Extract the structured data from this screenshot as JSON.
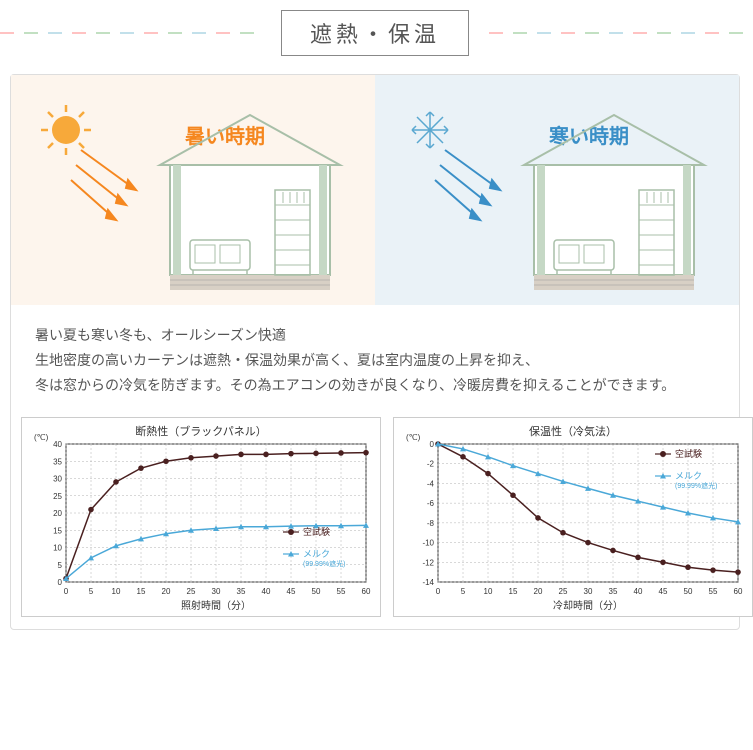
{
  "title": "遮熱・保温",
  "seasons": {
    "hot": {
      "label": "暑い時期",
      "color": "#f5871f",
      "bg": "#fdf5ed"
    },
    "cold": {
      "label": "寒い時期",
      "color": "#3a8fc7",
      "bg": "#eaf2f7"
    }
  },
  "description": {
    "line1": "暑い夏も寒い冬も、オールシーズン快適",
    "line2": "生地密度の高いカーテンは遮熱・保温効果が高く、夏は室内温度の上昇を抑え、",
    "line3": "冬は窓からの冷気を防ぎます。その為エアコンの効きが良くなり、冷暖房費を抑えることができます。"
  },
  "chart1": {
    "type": "line",
    "title": "断熱性（ブラックパネル）",
    "xlabel": "照射時間（分）",
    "ylabel_unit": "(℃)",
    "xlim": [
      0,
      60
    ],
    "xtick_step": 5,
    "ylim": [
      0,
      40
    ],
    "ytick_step": 5,
    "grid_color": "#b0b0b0",
    "background_color": "#ffffff",
    "title_fontsize": 11,
    "label_fontsize": 10,
    "tick_fontsize": 8,
    "series": [
      {
        "name": "空試験",
        "color": "#4a2020",
        "marker": "circle",
        "x": [
          0,
          5,
          10,
          15,
          20,
          25,
          30,
          35,
          40,
          45,
          50,
          55,
          60
        ],
        "y": [
          1,
          21,
          29,
          33,
          35,
          36,
          36.5,
          37,
          37,
          37.2,
          37.3,
          37.4,
          37.5
        ],
        "legend_label": "空試験"
      },
      {
        "name": "メルク",
        "color": "#4aa8d8",
        "marker": "triangle",
        "x": [
          0,
          5,
          10,
          15,
          20,
          25,
          30,
          35,
          40,
          45,
          50,
          55,
          60
        ],
        "y": [
          1,
          7,
          10.5,
          12.5,
          14,
          15,
          15.5,
          16,
          16,
          16.2,
          16.3,
          16.3,
          16.4
        ],
        "legend_label": "メルク",
        "legend_sub": "(99.99%遮光)"
      }
    ]
  },
  "chart2": {
    "type": "line",
    "title": "保温性（冷気法）",
    "xlabel": "冷却時間（分）",
    "ylabel_unit": "(℃)",
    "xlim": [
      0,
      60
    ],
    "xtick_step": 5,
    "ylim": [
      -14,
      0
    ],
    "ytick_step": 2,
    "grid_color": "#b0b0b0",
    "background_color": "#ffffff",
    "title_fontsize": 11,
    "label_fontsize": 10,
    "tick_fontsize": 8,
    "series": [
      {
        "name": "空試験",
        "color": "#4a2020",
        "marker": "circle",
        "x": [
          0,
          5,
          10,
          15,
          20,
          25,
          30,
          35,
          40,
          45,
          50,
          55,
          60
        ],
        "y": [
          0,
          -1.3,
          -3,
          -5.2,
          -7.5,
          -9,
          -10,
          -10.8,
          -11.5,
          -12,
          -12.5,
          -12.8,
          -13
        ],
        "legend_label": "空試験"
      },
      {
        "name": "メルク",
        "color": "#4aa8d8",
        "marker": "triangle",
        "x": [
          0,
          5,
          10,
          15,
          20,
          25,
          30,
          35,
          40,
          45,
          50,
          55,
          60
        ],
        "y": [
          0,
          -0.5,
          -1.3,
          -2.2,
          -3,
          -3.8,
          -4.5,
          -5.2,
          -5.8,
          -6.4,
          -7,
          -7.5,
          -7.9
        ],
        "legend_label": "メルク",
        "legend_sub": "(99.99%遮光)"
      }
    ]
  }
}
